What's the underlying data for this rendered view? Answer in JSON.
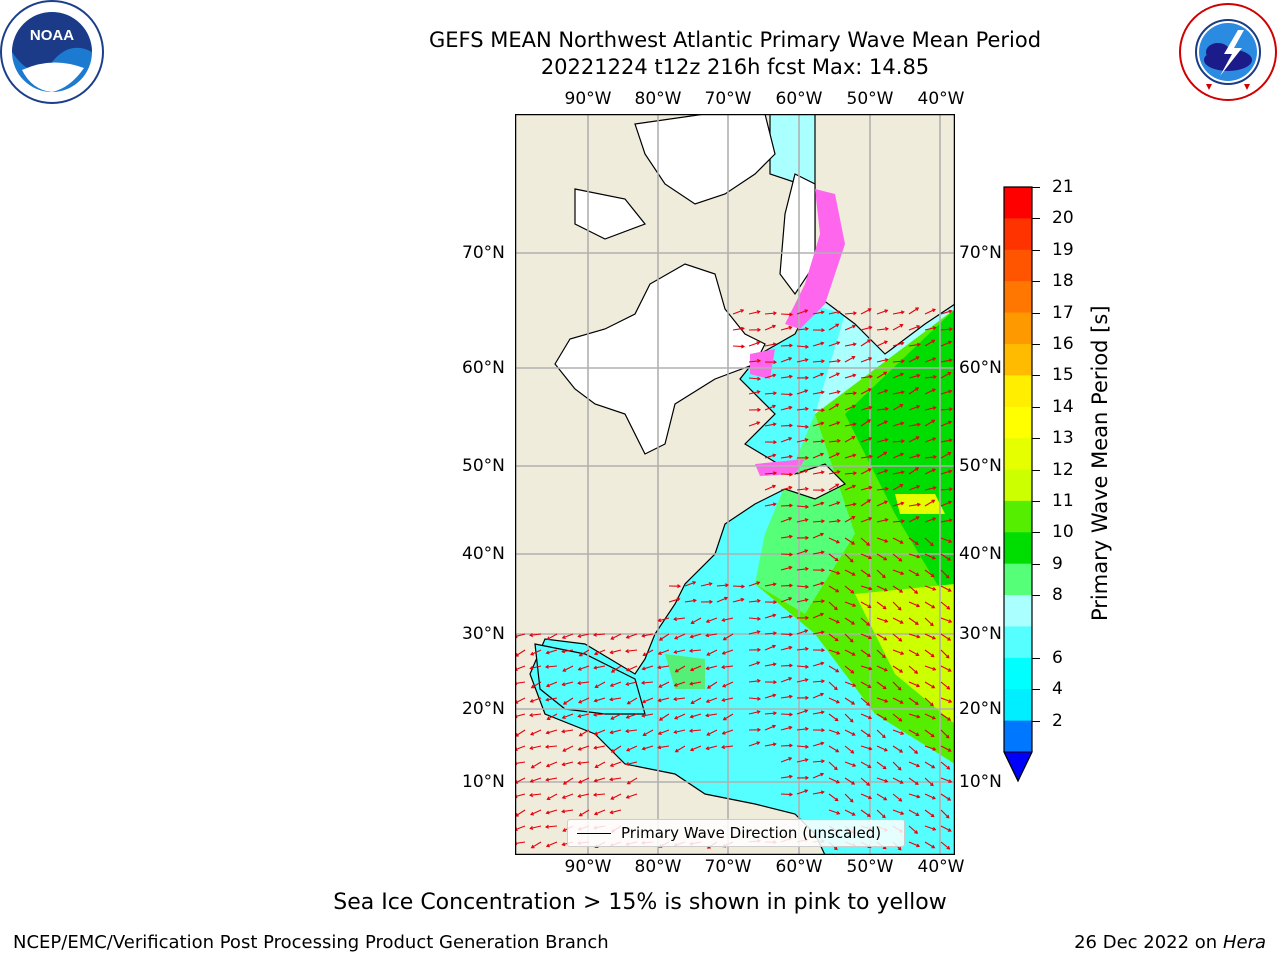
{
  "header": {
    "title_line1": "GEFS MEAN Northwest Atlantic Primary Wave Mean Period",
    "title_line2": "20221224 t12z 216h fcst   Max: 14.85"
  },
  "logos": {
    "left": "NOAA",
    "left_ring": "NATIONAL OCEANIC AND ATMOSPHERIC ADMINISTRATION · U.S. DEPARTMENT OF COMMERCE",
    "right_ring": "NATIONAL WEATHER SERVICE"
  },
  "map": {
    "lon_labels": [
      "90°W",
      "80°W",
      "70°W",
      "60°W",
      "50°W",
      "40°W"
    ],
    "lat_labels": [
      "70°N",
      "60°N",
      "50°N",
      "40°N",
      "30°N",
      "20°N",
      "10°N"
    ],
    "legend_label": "Primary Wave Direction (unscaled)",
    "colors": {
      "land": "#efecdc",
      "ice_white": "#ffffff",
      "arrow": "#e8000b",
      "grid": "#b0b0b0"
    }
  },
  "colorbar": {
    "label": "Primary Wave Mean Period [s]",
    "ticks": [
      "21",
      "20",
      "19",
      "18",
      "17",
      "16",
      "15",
      "14",
      "13",
      "12",
      "11",
      "10",
      "9",
      "8",
      "6",
      "4",
      "2"
    ],
    "colors": [
      "#ff0000",
      "#ff3300",
      "#ff5500",
      "#ff7700",
      "#ff9900",
      "#ffbb00",
      "#ffee00",
      "#ffff00",
      "#e6ff00",
      "#ccff00",
      "#55ee00",
      "#00dd00",
      "#55ff77",
      "#aaffff",
      "#55ffff",
      "#00ffff",
      "#00eeff",
      "#0077ff"
    ],
    "under_color": "#0000ff"
  },
  "footer": {
    "note": "Sea Ice Concentration > 15% is shown in pink to yellow",
    "org": "NCEP/EMC/Verification Post Processing Product Generation Branch",
    "date": "26 Dec 2022 on",
    "host": "Hera"
  }
}
